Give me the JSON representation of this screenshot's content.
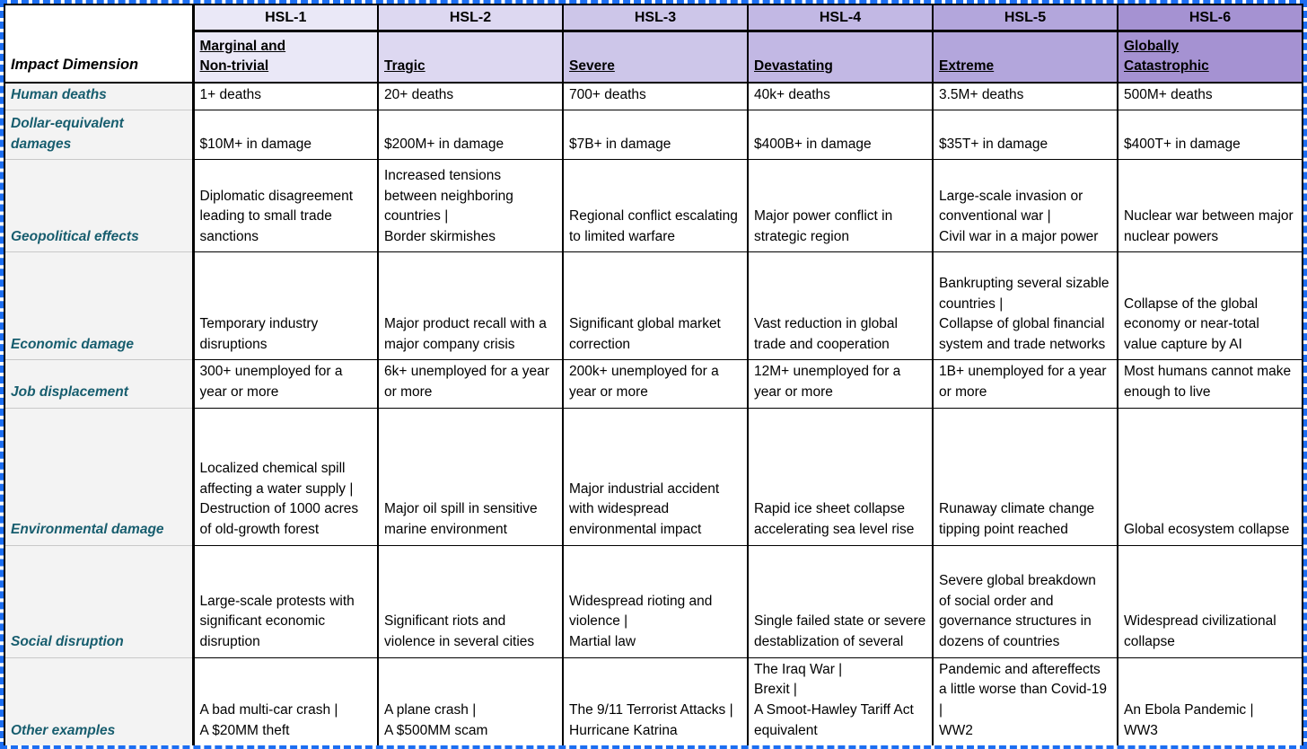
{
  "colors": {
    "marquee_blue": "#1c6ef2",
    "row_label_text": "#175d6e",
    "row_label_bg": "#f3f3f3",
    "grid_black": "#000000",
    "header_gradient": [
      "#eae8f7",
      "#ddd8f1",
      "#cdc6e9",
      "#c2b8e4",
      "#b3a6dc",
      "#a592d2"
    ]
  },
  "table": {
    "corner_label": "Impact Dimension",
    "columns": [
      {
        "name": "HSL-1",
        "severity": "Marginal and\nNon-trivial",
        "bg": "#eae8f7"
      },
      {
        "name": "HSL-2",
        "severity": "Tragic",
        "bg": "#ddd8f1"
      },
      {
        "name": "HSL-3",
        "severity": "Severe",
        "bg": "#cdc6e9"
      },
      {
        "name": "HSL-4",
        "severity": "Devastating",
        "bg": "#c2b8e4"
      },
      {
        "name": "HSL-5",
        "severity": "Extreme",
        "bg": "#b3a6dc"
      },
      {
        "name": "HSL-6",
        "severity": "Globally\nCatastrophic",
        "bg": "#a592d2"
      }
    ],
    "rows": [
      {
        "label": "Human deaths",
        "cells": [
          "1+ deaths",
          "20+ deaths",
          "700+ deaths",
          "40k+ deaths",
          "3.5M+ deaths",
          "500M+ deaths"
        ]
      },
      {
        "label": "Dollar-equivalent damages",
        "cells": [
          "$10M+ in damage",
          "$200M+ in damage",
          "$7B+ in damage",
          "$400B+ in damage",
          "$35T+ in damage",
          "$400T+ in damage"
        ]
      },
      {
        "label": "Geopolitical effects",
        "cells": [
          "Diplomatic disagreement leading to small trade sanctions",
          "Increased tensions between neighboring countries |\nBorder skirmishes",
          "Regional conflict escalating to limited warfare",
          "Major power conflict in strategic region",
          "Large-scale invasion or conventional war |\nCivil war in a major power",
          "Nuclear war between major nuclear powers"
        ]
      },
      {
        "label": "Economic damage",
        "cells": [
          "Temporary industry disruptions",
          "Major product recall with a major company crisis",
          "Significant global market correction",
          "Vast reduction in global trade and cooperation",
          "Bankrupting several sizable countries |\nCollapse of global financial system and trade networks",
          "Collapse of the global economy or near-total value capture by AI"
        ]
      },
      {
        "label": "Job displacement",
        "cells": [
          "300+ unemployed for a year or more",
          "6k+ unemployed for a year or more",
          "200k+ unemployed for a year or more",
          "12M+ unemployed for a year or more",
          "1B+ unemployed for a year or more",
          "Most humans cannot make enough to live"
        ]
      },
      {
        "label": "Environmental damage",
        "cells": [
          "Localized chemical spill affecting a water supply |\nDestruction of 1000 acres of old-growth forest",
          "Major oil spill in sensitive marine environment",
          "Major industrial accident with widespread environmental impact",
          "Rapid ice sheet collapse accelerating sea level rise",
          "Runaway climate change tipping point reached",
          "Global ecosystem collapse"
        ]
      },
      {
        "label": "Social disruption",
        "cells": [
          "Large-scale protests with significant economic disruption",
          "Significant riots and violence in several cities",
          "Widespread rioting and violence |\nMartial law",
          "Single failed state or severe destablization of several",
          "Severe global breakdown of social order and governance structures in dozens of countries",
          "Widespread civilizational collapse"
        ]
      },
      {
        "label": "Other examples",
        "cells": [
          "A bad multi-car crash |\nA $20MM theft",
          "A plane crash |\nA $500MM scam",
          "The 9/11 Terrorist Attacks |\nHurricane Katrina",
          "The Iraq War |\nBrexit |\nA Smoot-Hawley Tariff Act equivalent",
          "Pandemic and aftereffects a little worse than Covid-19  |\nWW2",
          "An Ebola Pandemic |\nWW3"
        ]
      }
    ]
  }
}
